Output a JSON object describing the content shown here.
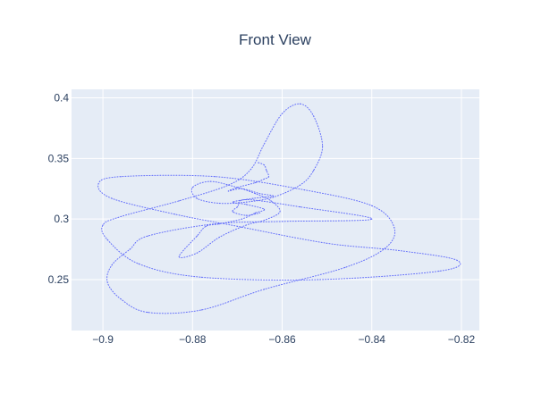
{
  "chart_data": {
    "type": "scatter",
    "title": "Front View",
    "xlabel": "",
    "ylabel": "",
    "xlim": [
      -0.907,
      -0.816
    ],
    "ylim": [
      0.208,
      0.407
    ],
    "x_ticks": [
      -0.9,
      -0.88,
      -0.86,
      -0.84,
      -0.82
    ],
    "x_tick_labels": [
      "−0.9",
      "−0.88",
      "−0.86",
      "−0.84",
      "−0.82"
    ],
    "y_ticks": [
      0.25,
      0.3,
      0.35,
      0.4
    ],
    "y_tick_labels": [
      "0.25",
      "0.3",
      "0.35",
      "0.4"
    ],
    "grid": true,
    "legend": false,
    "colors": {
      "plot_bg": "#e5ecf6",
      "grid": "#ffffff",
      "line": "#636efa",
      "text": "#2a3f5f"
    },
    "series": [
      {
        "mode": "lines+markers (dotted trajectory)",
        "points": [
          [
            -0.8653,
            0.3465
          ],
          [
            -0.864,
            0.3445
          ],
          [
            -0.8635,
            0.34
          ],
          [
            -0.863,
            0.335
          ],
          [
            -0.864,
            0.333
          ],
          [
            -0.866,
            0.33
          ],
          [
            -0.87,
            0.326
          ],
          [
            -0.872,
            0.323
          ],
          [
            -0.869,
            0.325
          ],
          [
            -0.865,
            0.321
          ],
          [
            -0.862,
            0.319
          ],
          [
            -0.8665,
            0.317
          ],
          [
            -0.871,
            0.314
          ],
          [
            -0.868,
            0.312
          ],
          [
            -0.864,
            0.308
          ],
          [
            -0.866,
            0.305
          ],
          [
            -0.869,
            0.3
          ],
          [
            -0.874,
            0.296
          ],
          [
            -0.877,
            0.294
          ],
          [
            -0.879,
            0.286
          ],
          [
            -0.883,
            0.269
          ],
          [
            -0.879,
            0.272
          ],
          [
            -0.874,
            0.285
          ],
          [
            -0.868,
            0.295
          ],
          [
            -0.864,
            0.299
          ],
          [
            -0.8605,
            0.306
          ],
          [
            -0.8625,
            0.315
          ],
          [
            -0.866,
            0.321
          ],
          [
            -0.87,
            0.326
          ],
          [
            -0.876,
            0.331
          ],
          [
            -0.88,
            0.326
          ],
          [
            -0.879,
            0.317
          ],
          [
            -0.874,
            0.313
          ],
          [
            -0.868,
            0.314
          ],
          [
            -0.862,
            0.318
          ],
          [
            -0.856,
            0.328
          ],
          [
            -0.853,
            0.34
          ],
          [
            -0.851,
            0.36
          ],
          [
            -0.853,
            0.385
          ],
          [
            -0.856,
            0.395
          ],
          [
            -0.86,
            0.387
          ],
          [
            -0.864,
            0.362
          ],
          [
            -0.867,
            0.341
          ],
          [
            -0.872,
            0.328
          ],
          [
            -0.883,
            0.315
          ],
          [
            -0.896,
            0.302
          ],
          [
            -0.9,
            0.295
          ],
          [
            -0.899,
            0.283
          ],
          [
            -0.892,
            0.263
          ],
          [
            -0.878,
            0.252
          ],
          [
            -0.852,
            0.25
          ],
          [
            -0.825,
            0.257
          ],
          [
            -0.821,
            0.266
          ],
          [
            -0.834,
            0.274
          ],
          [
            -0.85,
            0.28
          ],
          [
            -0.87,
            0.294
          ],
          [
            -0.884,
            0.304
          ],
          [
            -0.898,
            0.317
          ],
          [
            -0.901,
            0.329
          ],
          [
            -0.896,
            0.335
          ],
          [
            -0.875,
            0.335
          ],
          [
            -0.855,
            0.324
          ],
          [
            -0.84,
            0.311
          ],
          [
            -0.835,
            0.293
          ],
          [
            -0.837,
            0.276
          ],
          [
            -0.846,
            0.26
          ],
          [
            -0.864,
            0.242
          ],
          [
            -0.878,
            0.225
          ],
          [
            -0.89,
            0.223
          ],
          [
            -0.896,
            0.234
          ],
          [
            -0.899,
            0.248
          ],
          [
            -0.898,
            0.262
          ],
          [
            -0.894,
            0.275
          ],
          [
            -0.89,
            0.286
          ],
          [
            -0.875,
            0.296
          ],
          [
            -0.86,
            0.298
          ],
          [
            -0.84,
            0.3
          ],
          [
            -0.856,
            0.31
          ],
          [
            -0.868,
            0.316
          ],
          [
            -0.87,
            0.31
          ],
          [
            -0.871,
            0.306
          ],
          [
            -0.868,
            0.303
          ],
          [
            -0.865,
            0.305
          ]
        ]
      }
    ]
  }
}
